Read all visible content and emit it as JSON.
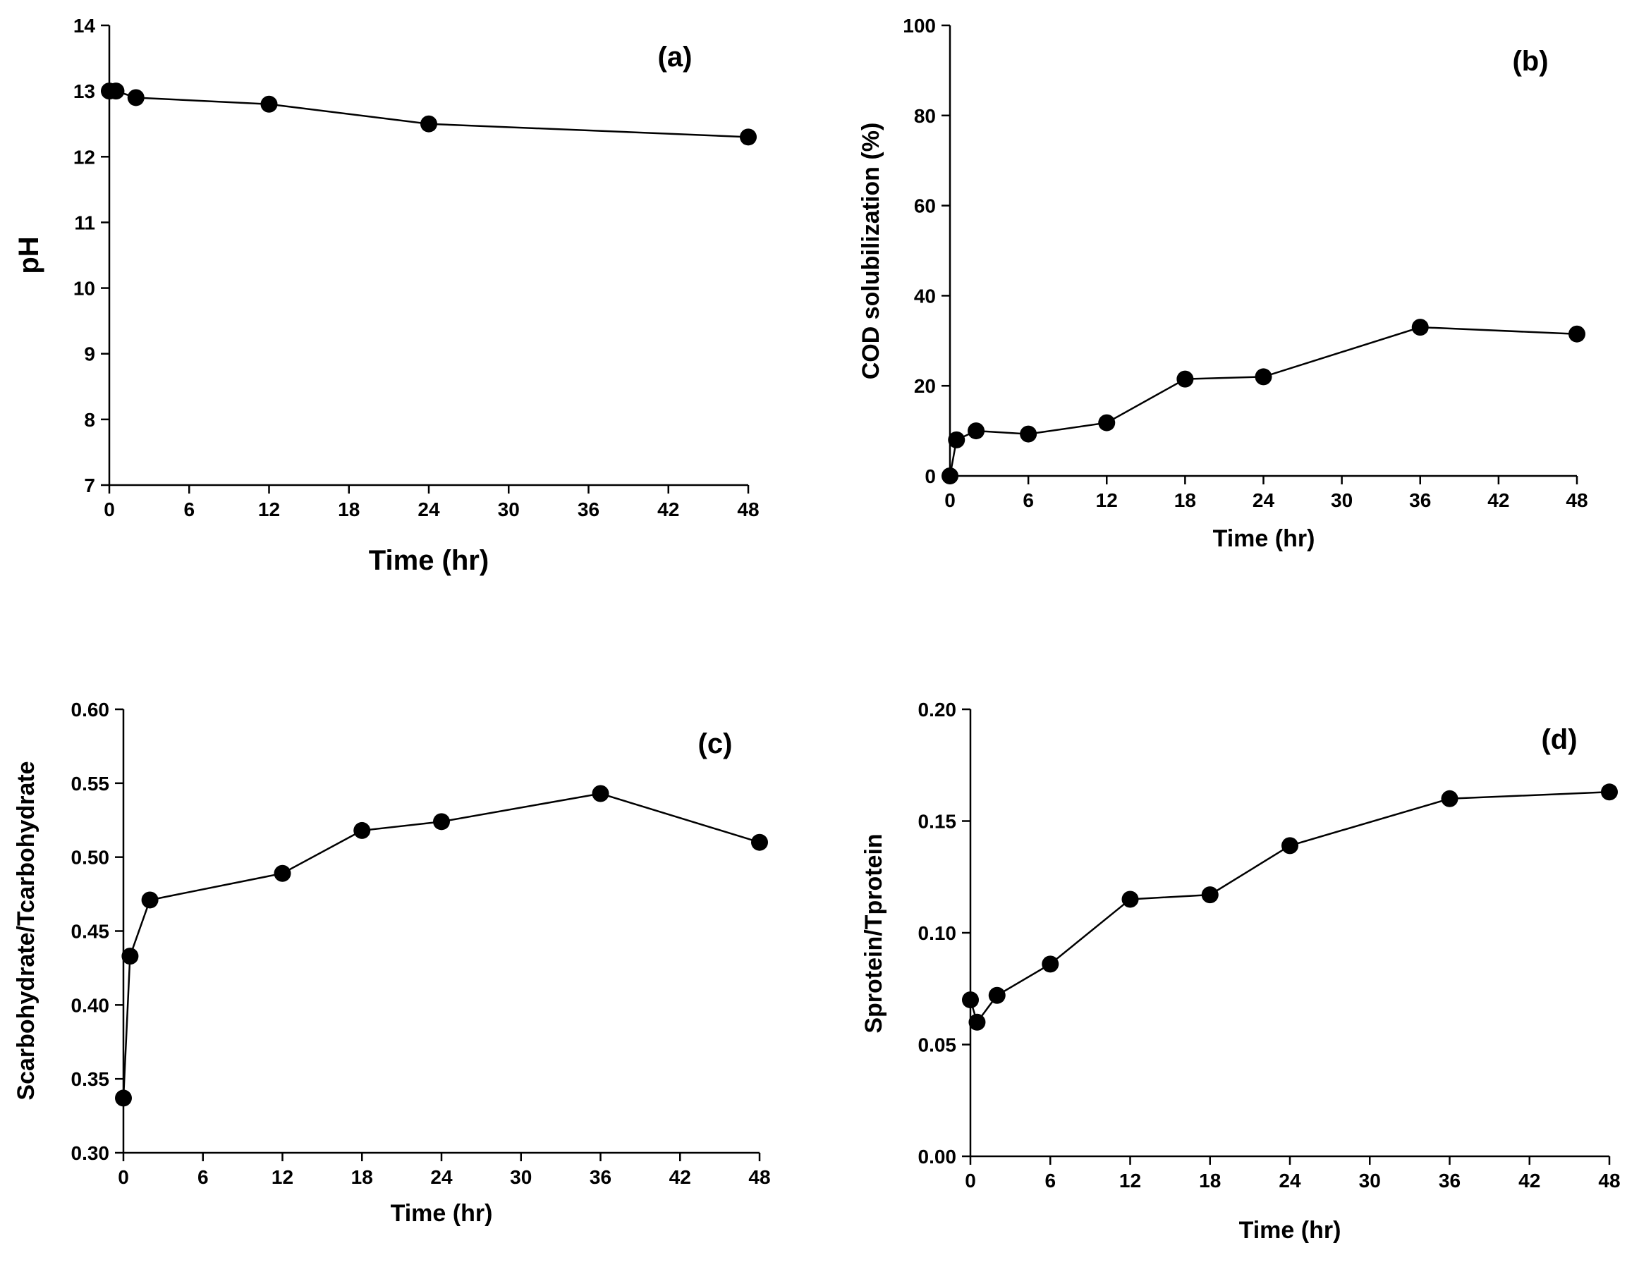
{
  "chart_data": [
    {
      "type": "line",
      "panel_label": "(a)",
      "xlabel": "Time (hr)",
      "ylabel": "pH",
      "xlim": [
        0,
        48
      ],
      "ylim": [
        7,
        14
      ],
      "xticks": [
        0,
        6,
        12,
        18,
        24,
        30,
        36,
        42,
        48
      ],
      "yticks": [
        7,
        8,
        9,
        10,
        11,
        12,
        13,
        14
      ],
      "ytick_labels": [
        "7",
        "8",
        "9",
        "10",
        "11",
        "12",
        "13",
        "14"
      ],
      "grid": false,
      "series": [
        {
          "x": [
            0,
            0.5,
            2,
            12,
            24,
            48
          ],
          "y": [
            13.0,
            13.0,
            12.9,
            12.8,
            12.5,
            12.3
          ]
        }
      ]
    },
    {
      "type": "line",
      "panel_label": "(b)",
      "xlabel": "Time (hr)",
      "ylabel": "COD solubilization (%)",
      "xlim": [
        0,
        48
      ],
      "ylim": [
        0,
        100
      ],
      "xticks": [
        0,
        6,
        12,
        18,
        24,
        30,
        36,
        42,
        48
      ],
      "yticks": [
        0,
        20,
        40,
        60,
        80,
        100
      ],
      "ytick_labels": [
        "0",
        "20",
        "40",
        "60",
        "80",
        "100"
      ],
      "grid": false,
      "series": [
        {
          "x": [
            0,
            0.5,
            2,
            6,
            12,
            18,
            24,
            36,
            48
          ],
          "y": [
            0,
            8,
            10,
            9.3,
            11.8,
            21.5,
            22,
            33,
            31.5
          ]
        }
      ]
    },
    {
      "type": "line",
      "panel_label": "(c)",
      "xlabel": "Time (hr)",
      "ylabel": "Scarbohydrate/Tcarbohydrate",
      "xlim": [
        0,
        48
      ],
      "ylim": [
        0.3,
        0.6
      ],
      "xticks": [
        0,
        6,
        12,
        18,
        24,
        30,
        36,
        42,
        48
      ],
      "yticks": [
        0.3,
        0.35,
        0.4,
        0.45,
        0.5,
        0.55,
        0.6
      ],
      "ytick_labels": [
        "0.30",
        "0.35",
        "0.40",
        "0.45",
        "0.50",
        "0.55",
        "0.60"
      ],
      "grid": false,
      "series": [
        {
          "x": [
            0,
            0.5,
            2,
            12,
            18,
            24,
            36,
            48
          ],
          "y": [
            0.337,
            0.433,
            0.471,
            0.489,
            0.518,
            0.524,
            0.543,
            0.51
          ]
        }
      ]
    },
    {
      "type": "line",
      "panel_label": "(d)",
      "xlabel": "Time (hr)",
      "ylabel": "Sprotein/Tprotein",
      "xlim": [
        0,
        48
      ],
      "ylim": [
        0.0,
        0.2
      ],
      "xticks": [
        0,
        6,
        12,
        18,
        24,
        30,
        36,
        42,
        48
      ],
      "yticks": [
        0.0,
        0.05,
        0.1,
        0.15,
        0.2
      ],
      "ytick_labels": [
        "0.00",
        "0.05",
        "0.10",
        "0.15",
        "0.20"
      ],
      "grid": false,
      "series": [
        {
          "x": [
            0,
            0.5,
            2,
            6,
            12,
            18,
            24,
            36,
            48
          ],
          "y": [
            0.07,
            0.06,
            0.072,
            0.086,
            0.115,
            0.117,
            0.139,
            0.16,
            0.163
          ]
        }
      ]
    }
  ]
}
